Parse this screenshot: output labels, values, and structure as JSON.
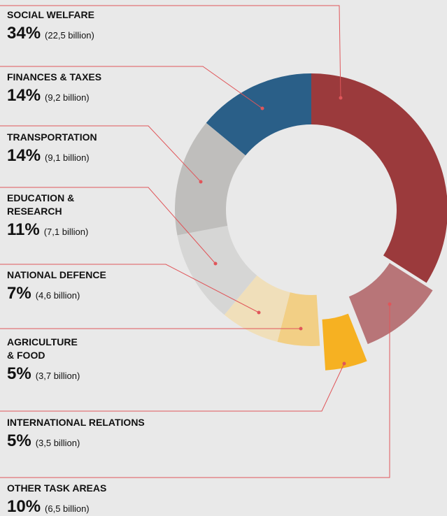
{
  "chart_data": {
    "type": "pie",
    "categories": [
      "SOCIAL WELFARE",
      "FINANCES & TAXES",
      "TRANSPORTATION",
      "EDUCATION & RESEARCH",
      "NATIONAL DEFENCE",
      "AGRICULTURE & FOOD",
      "INTERNATIONAL RELATIONS",
      "OTHER TASK AREAS"
    ],
    "values": [
      34,
      14,
      14,
      11,
      7,
      5,
      5,
      10
    ],
    "value_labels": [
      "34%",
      "14%",
      "14%",
      "11%",
      "7%",
      "5%",
      "5%",
      "10%"
    ],
    "details": [
      "(22,5 billion)",
      "(9,2 billion)",
      "(9,1 billion)",
      "(7,1 billion)",
      "(4,6 billion)",
      "(3,7 billion)",
      "(3,5 billion)",
      "(6,5 billion)"
    ],
    "colors": [
      "#9b3a3c",
      "#2a5f88",
      "#bfbebc",
      "#d6d6d5",
      "#f0dfba",
      "#f2cf85",
      "#f6b122",
      "#b87578"
    ]
  }
}
